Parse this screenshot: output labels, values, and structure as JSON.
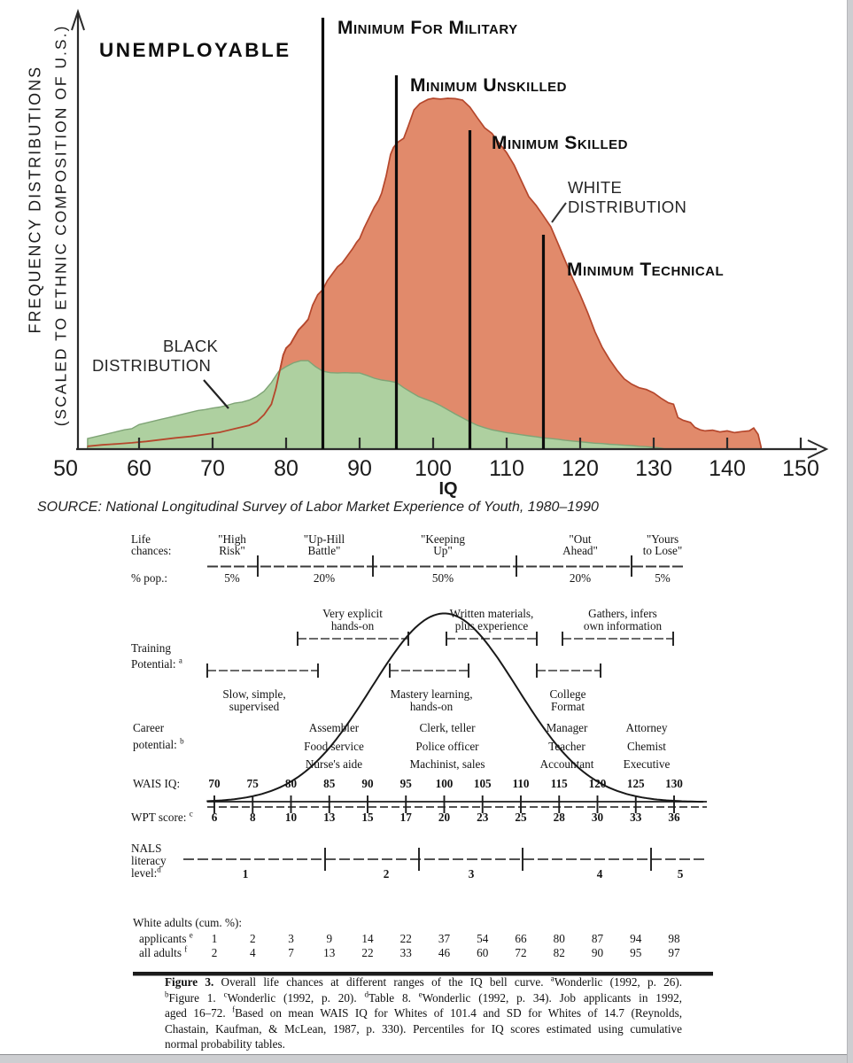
{
  "chart_data": [
    {
      "type": "area",
      "title": "IQ frequency distributions scaled to ethnic composition of U.S.",
      "xlabel": "IQ",
      "x_range": [
        50,
        150
      ],
      "x_ticks": [
        "50",
        "60",
        "70",
        "80",
        "90",
        "100",
        "110",
        "120",
        "130",
        "140",
        "150"
      ],
      "y_axis_label": [
        "FREQUENCY DISTRIBUTIONS",
        "(SCALED TO ETHNIC COMPOSITION OF U.S.)"
      ],
      "annotations": [
        "UNEMPLOYABLE"
      ],
      "source": "SOURCE: National Longitudinal Survey of Labor Market Experience of Youth, 1980–1990",
      "grid": false,
      "colors": {
        "white_fill": "#e18a6b",
        "white_stroke": "#b5472c",
        "black_fill": "#aed0a0",
        "black_stroke": "#7fa476",
        "line": "#0c0c0c"
      },
      "thresholds": [
        {
          "iq": 85,
          "label": "Minimum For Military"
        },
        {
          "iq": 95,
          "label": "Minimum Unskilled"
        },
        {
          "iq": 105,
          "label": "Minimum Skilled"
        },
        {
          "iq": 115,
          "label": "Minimum Technical"
        }
      ],
      "series": [
        {
          "name": "WHITE DISTRIBUTION",
          "label_lines": [
            "WHITE",
            "DISTRIBUTION"
          ],
          "points": [
            [
              53,
              0.008
            ],
            [
              55,
              0.012
            ],
            [
              57,
              0.015
            ],
            [
              59,
              0.018
            ],
            [
              61,
              0.022
            ],
            [
              63,
              0.027
            ],
            [
              65,
              0.032
            ],
            [
              67,
              0.036
            ],
            [
              69,
              0.042
            ],
            [
              71,
              0.048
            ],
            [
              73,
              0.058
            ],
            [
              75,
              0.068
            ],
            [
              76,
              0.078
            ],
            [
              77,
              0.098
            ],
            [
              78,
              0.128
            ],
            [
              78.6,
              0.172
            ],
            [
              79,
              0.21
            ],
            [
              79.6,
              0.268
            ],
            [
              80,
              0.288
            ],
            [
              80.6,
              0.3
            ],
            [
              81,
              0.315
            ],
            [
              81.7,
              0.34
            ],
            [
              82.4,
              0.355
            ],
            [
              83,
              0.37
            ],
            [
              83.6,
              0.41
            ],
            [
              84.3,
              0.44
            ],
            [
              85,
              0.455
            ],
            [
              85.6,
              0.48
            ],
            [
              86.3,
              0.5
            ],
            [
              87,
              0.52
            ],
            [
              87.6,
              0.53
            ],
            [
              88.3,
              0.55
            ],
            [
              89,
              0.57
            ],
            [
              89.6,
              0.59
            ],
            [
              90,
              0.6
            ],
            [
              90.6,
              0.63
            ],
            [
              91.3,
              0.66
            ],
            [
              92,
              0.69
            ],
            [
              92.6,
              0.71
            ],
            [
              93,
              0.73
            ],
            [
              93.6,
              0.778
            ],
            [
              94.2,
              0.84
            ],
            [
              94.6,
              0.86
            ],
            [
              95.2,
              0.875
            ],
            [
              96,
              0.886
            ],
            [
              96.6,
              0.92
            ],
            [
              97.4,
              0.967
            ],
            [
              98.2,
              0.985
            ],
            [
              99.3,
              0.997
            ],
            [
              100,
              1.0
            ],
            [
              101,
              0.998
            ],
            [
              102,
              1.0
            ],
            [
              103,
              0.999
            ],
            [
              104,
              0.995
            ],
            [
              105,
              0.975
            ],
            [
              106,
              0.945
            ],
            [
              107,
              0.916
            ],
            [
              108,
              0.9
            ],
            [
              109,
              0.872
            ],
            [
              110,
              0.845
            ],
            [
              111,
              0.81
            ],
            [
              112,
              0.765
            ],
            [
              113,
              0.72
            ],
            [
              114,
              0.695
            ],
            [
              115,
              0.665
            ],
            [
              116,
              0.634
            ],
            [
              117,
              0.585
            ],
            [
              118,
              0.535
            ],
            [
              119,
              0.485
            ],
            [
              120,
              0.44
            ],
            [
              121,
              0.39
            ],
            [
              122,
              0.335
            ],
            [
              123,
              0.29
            ],
            [
              124,
              0.255
            ],
            [
              125,
              0.225
            ],
            [
              126,
              0.2
            ],
            [
              127,
              0.185
            ],
            [
              128,
              0.175
            ],
            [
              129,
              0.17
            ],
            [
              130,
              0.16
            ],
            [
              131,
              0.145
            ],
            [
              132,
              0.132
            ],
            [
              132.7,
              0.128
            ],
            [
              133.3,
              0.09
            ],
            [
              134,
              0.082
            ],
            [
              135,
              0.076
            ],
            [
              135.6,
              0.062
            ],
            [
              136.3,
              0.055
            ],
            [
              137,
              0.052
            ],
            [
              138,
              0.054
            ],
            [
              139,
              0.049
            ],
            [
              140,
              0.052
            ],
            [
              141,
              0.047
            ],
            [
              142,
              0.05
            ],
            [
              143,
              0.052
            ],
            [
              143.6,
              0.06
            ],
            [
              144.2,
              0.042
            ],
            [
              144.6,
              0.006
            ]
          ]
        },
        {
          "name": "BLACK DISTRIBUTION",
          "label_lines": [
            "BLACK",
            "DISTRIBUTION"
          ],
          "points": [
            [
              53,
              0.03
            ],
            [
              55,
              0.04
            ],
            [
              57,
              0.05
            ],
            [
              58,
              0.055
            ],
            [
              59,
              0.058
            ],
            [
              60,
              0.07
            ],
            [
              61,
              0.075
            ],
            [
              62,
              0.08
            ],
            [
              63,
              0.085
            ],
            [
              64,
              0.09
            ],
            [
              65,
              0.095
            ],
            [
              66,
              0.1
            ],
            [
              67,
              0.105
            ],
            [
              68,
              0.11
            ],
            [
              69,
              0.113
            ],
            [
              70,
              0.117
            ],
            [
              71,
              0.12
            ],
            [
              72,
              0.125
            ],
            [
              73,
              0.131
            ],
            [
              74,
              0.134
            ],
            [
              75,
              0.14
            ],
            [
              76,
              0.15
            ],
            [
              77,
              0.165
            ],
            [
              78,
              0.19
            ],
            [
              79,
              0.222
            ],
            [
              80,
              0.235
            ],
            [
              81,
              0.246
            ],
            [
              82,
              0.252
            ],
            [
              83,
              0.252
            ],
            [
              84,
              0.235
            ],
            [
              85,
              0.222
            ],
            [
              86,
              0.218
            ],
            [
              87,
              0.217
            ],
            [
              88,
              0.218
            ],
            [
              89,
              0.217
            ],
            [
              90,
              0.217
            ],
            [
              91,
              0.21
            ],
            [
              92,
              0.202
            ],
            [
              93,
              0.197
            ],
            [
              94,
              0.194
            ],
            [
              95,
              0.19
            ],
            [
              96,
              0.175
            ],
            [
              97,
              0.162
            ],
            [
              98,
              0.15
            ],
            [
              99,
              0.142
            ],
            [
              100,
              0.134
            ],
            [
              101,
              0.124
            ],
            [
              102,
              0.112
            ],
            [
              103,
              0.1
            ],
            [
              104,
              0.089
            ],
            [
              105,
              0.078
            ],
            [
              106,
              0.068
            ],
            [
              107,
              0.061
            ],
            [
              108,
              0.055
            ],
            [
              109,
              0.051
            ],
            [
              110,
              0.047
            ],
            [
              111,
              0.044
            ],
            [
              112,
              0.041
            ],
            [
              113,
              0.038
            ],
            [
              114,
              0.035
            ],
            [
              115,
              0.032
            ],
            [
              116,
              0.03
            ],
            [
              117,
              0.028
            ],
            [
              118,
              0.025
            ],
            [
              119,
              0.023
            ],
            [
              120,
              0.021
            ],
            [
              121,
              0.019
            ],
            [
              122,
              0.017
            ],
            [
              123,
              0.016
            ],
            [
              124,
              0.014
            ],
            [
              125,
              0.013
            ],
            [
              126,
              0.011
            ],
            [
              127,
              0.01
            ],
            [
              128,
              0.008
            ],
            [
              129,
              0.007
            ],
            [
              130,
              0.005
            ],
            [
              131,
              0.003
            ],
            [
              131.6,
              0.0
            ]
          ]
        }
      ]
    },
    {
      "type": "line",
      "title": "Overall life chances at different ranges of the IQ bell curve",
      "bell_curve": {
        "center_iq": 100,
        "sigma_iq": 9.5
      },
      "life_chances": {
        "row_label": [
          "Life",
          "chances:"
        ],
        "categories": [
          [
            "\"High",
            "Risk\""
          ],
          [
            "\"Up-Hill",
            "Battle\""
          ],
          [
            "\"Keeping",
            "Up\""
          ],
          [
            "\"Out",
            "Ahead\""
          ],
          [
            "\"Yours",
            "to Lose\""
          ]
        ],
        "pct_label": "% pop.:",
        "pct": [
          "5%",
          "20%",
          "50%",
          "20%",
          "5%"
        ]
      },
      "training": {
        "row_label": [
          "Training",
          "Potential:"
        ],
        "sup": "a",
        "upper": [
          [
            "Very explicit",
            "hands-on"
          ],
          [
            "Written materials,",
            "plus experience"
          ],
          [
            "Gathers, infers",
            "own information"
          ]
        ],
        "lower": [
          [
            "Slow, simple,",
            "supervised"
          ],
          [
            "Mastery learning,",
            "hands-on"
          ],
          [
            "College",
            "Format"
          ]
        ]
      },
      "career": {
        "row_label": [
          "Career",
          "potential:"
        ],
        "sup": "b",
        "columns": [
          [
            "Assembler",
            "Food service",
            "Nurse's aide"
          ],
          [
            "Clerk, teller",
            "Police officer",
            "Machinist, sales"
          ],
          [
            "Manager",
            "Teacher",
            "Accountant"
          ],
          [
            "Attorney",
            "Chemist",
            "Executive"
          ]
        ]
      },
      "wais": {
        "label": "WAIS IQ:",
        "values": [
          "70",
          "75",
          "80",
          "85",
          "90",
          "95",
          "100",
          "105",
          "110",
          "115",
          "120",
          "125",
          "130"
        ]
      },
      "wpt": {
        "label": "WPT score:",
        "sup": "c",
        "values": [
          "6",
          "8",
          "10",
          "13",
          "15",
          "17",
          "20",
          "23",
          "25",
          "28",
          "30",
          "33",
          "36"
        ]
      },
      "nals": {
        "label": [
          "NALS",
          "literacy",
          "level:"
        ],
        "sup": "d",
        "levels": [
          "1",
          "2",
          "3",
          "4",
          "5"
        ]
      },
      "white_adults": {
        "header": "White adults (cum. %):",
        "rows": [
          {
            "label": "applicants",
            "sup": "e",
            "values": [
              "1",
              "2",
              "3",
              "9",
              "14",
              "22",
              "37",
              "54",
              "66",
              "80",
              "87",
              "94",
              "98"
            ]
          },
          {
            "label": "all adults",
            "sup": "f",
            "values": [
              "2",
              "4",
              "7",
              "13",
              "22",
              "33",
              "46",
              "60",
              "72",
              "82",
              "90",
              "95",
              "97"
            ]
          }
        ]
      },
      "caption": [
        [
          {
            "b": 1,
            "t": "Figure 3."
          },
          {
            "t": " Overall life chances at different ranges of the IQ bell curve. "
          },
          {
            "s": 1,
            "t": "a"
          },
          {
            "t": "Wonderlic (1992, p. 26)."
          }
        ],
        [
          {
            "s": 1,
            "t": "b"
          },
          {
            "t": "Figure 1. "
          },
          {
            "s": 1,
            "t": "c"
          },
          {
            "t": "Wonderlic (1992, p. 20). "
          },
          {
            "s": 1,
            "t": "d"
          },
          {
            "t": "Table 8. "
          },
          {
            "s": 1,
            "t": "e"
          },
          {
            "t": "Wonderlic (1992, p. 34). Job applicants in 1992,"
          }
        ],
        [
          {
            "t": "aged 16–72. "
          },
          {
            "s": 1,
            "t": "f"
          },
          {
            "t": "Based on mean WAIS IQ for Whites of 101.4 and SD for Whites of 14.7 (Reynolds,"
          }
        ],
        [
          {
            "t": "Chastain, Kaufman, & McLean, 1987, p. 330). Percentiles for IQ scores estimated using cumulative"
          }
        ],
        [
          {
            "t": "normal probability tables."
          }
        ]
      ]
    }
  ]
}
